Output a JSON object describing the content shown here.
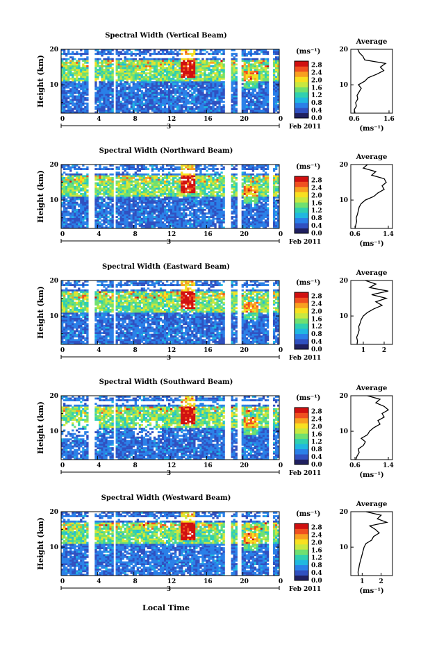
{
  "chart_data": {
    "type": "heatmap",
    "xlabel": "Local Time",
    "date_label": "Feb 2011",
    "day_label": "3",
    "x_ticks": [
      "0",
      "4",
      "8",
      "12",
      "16",
      "20",
      "0"
    ],
    "x_range_hours": [
      0,
      24
    ],
    "y_range_km": [
      2,
      20
    ],
    "y_ticks": [
      "10",
      "20"
    ],
    "colorbar": {
      "unit": "(ms⁻¹)",
      "ticks": [
        "0.0",
        "0.4",
        "0.8",
        "1.2",
        "1.6",
        "2.0",
        "2.4",
        "2.8"
      ],
      "range": [
        0.0,
        3.0
      ],
      "colors": [
        "#202060",
        "#3050c0",
        "#2a80e8",
        "#20b8e0",
        "#30d0b0",
        "#70e070",
        "#c8e840",
        "#f8e020",
        "#f8a020",
        "#f05020",
        "#d01010"
      ]
    },
    "panels": [
      {
        "title": "Spectral Width (Vertical Beam)",
        "ylabel": "Height (km)",
        "average": {
          "title": "Average",
          "xlabel": "(ms⁻¹)",
          "x_ticks": [
            "0.6",
            "1.6"
          ],
          "x_range": [
            0.5,
            1.7
          ],
          "heights_km": [
            2,
            3,
            4,
            5,
            6,
            7,
            8,
            9,
            10,
            11,
            12,
            13,
            14,
            15,
            16,
            17,
            18,
            19,
            20
          ],
          "values": [
            0.62,
            0.6,
            0.66,
            0.64,
            0.7,
            0.68,
            0.74,
            0.8,
            0.72,
            0.9,
            1.0,
            1.25,
            1.45,
            1.35,
            1.5,
            0.9,
            0.85,
            0.75,
            0.7
          ]
        }
      },
      {
        "title": "Spectral Width (Northward Beam)",
        "ylabel": "Height (km)",
        "average": {
          "title": "Average",
          "xlabel": "(ms⁻¹)",
          "x_ticks": [
            "0.6",
            "1.4"
          ],
          "x_range": [
            0.5,
            1.5
          ],
          "heights_km": [
            2,
            3,
            4,
            5,
            6,
            7,
            8,
            9,
            10,
            11,
            12,
            13,
            14,
            15,
            16,
            17,
            18,
            19,
            20
          ],
          "values": [
            0.6,
            0.62,
            0.64,
            0.63,
            0.66,
            0.68,
            0.7,
            0.75,
            0.85,
            1.05,
            1.15,
            1.3,
            1.25,
            1.35,
            1.3,
            1.0,
            1.1,
            0.8,
            0.9
          ]
        }
      },
      {
        "title": "Spectral Width (Eastward Beam)",
        "ylabel": "Height (km)",
        "average": {
          "title": "Average",
          "xlabel": "",
          "x_ticks": [
            "1",
            "2"
          ],
          "x_range": [
            0.4,
            2.4
          ],
          "heights_km": [
            2,
            3,
            4,
            5,
            6,
            7,
            8,
            9,
            10,
            11,
            12,
            13,
            14,
            15,
            16,
            17,
            18,
            19,
            20
          ],
          "values": [
            0.7,
            0.72,
            0.68,
            0.75,
            0.8,
            0.78,
            0.85,
            0.9,
            1.0,
            1.2,
            1.5,
            1.9,
            1.6,
            2.1,
            1.4,
            2.2,
            1.3,
            1.6,
            1.1
          ]
        }
      },
      {
        "title": "Spectral Width (Southward Beam)",
        "ylabel": "Height (km)",
        "average": {
          "title": "Average",
          "xlabel": "(ms⁻¹)",
          "x_ticks": [
            "0.6",
            "1.4"
          ],
          "x_range": [
            0.5,
            1.5
          ],
          "heights_km": [
            2,
            3,
            4,
            5,
            6,
            7,
            8,
            9,
            10,
            11,
            12,
            13,
            14,
            15,
            16,
            17,
            18,
            19,
            20
          ],
          "values": [
            0.62,
            0.65,
            0.7,
            0.68,
            0.8,
            0.85,
            0.75,
            0.9,
            0.95,
            1.05,
            1.2,
            1.15,
            1.3,
            1.25,
            1.4,
            1.3,
            1.1,
            1.2,
            0.9
          ]
        }
      },
      {
        "title": "Spectral Width (Westward Beam)",
        "ylabel": "Height (km)",
        "average": {
          "title": "Average",
          "xlabel": "(ms⁻¹)",
          "x_ticks": [
            "1",
            "2"
          ],
          "x_range": [
            0.4,
            2.6
          ],
          "heights_km": [
            2,
            3,
            4,
            5,
            6,
            7,
            8,
            9,
            10,
            11,
            12,
            13,
            14,
            15,
            16,
            17,
            18,
            19,
            20
          ],
          "values": [
            0.8,
            0.78,
            0.82,
            0.85,
            0.9,
            0.95,
            1.0,
            1.05,
            1.1,
            1.2,
            1.5,
            1.6,
            1.9,
            1.7,
            1.4,
            2.3,
            1.8,
            2.0,
            1.2
          ]
        }
      }
    ]
  }
}
